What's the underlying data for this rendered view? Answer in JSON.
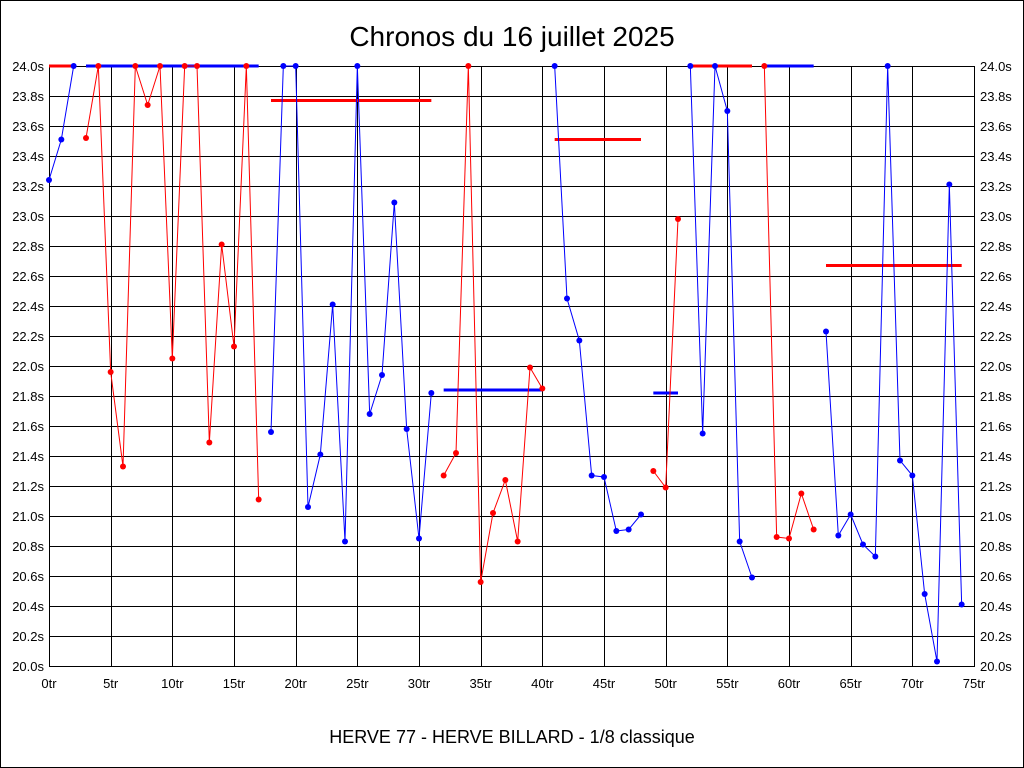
{
  "chart_data": {
    "type": "line",
    "title": "Chronos du 16 juillet 2025",
    "footer": "HERVE 77 - HERVE BILLARD - 1/8 classique",
    "xlim": [
      0,
      75
    ],
    "ylim": [
      20.0,
      24.0
    ],
    "grid": true,
    "colors": {
      "background": "#ffffff",
      "grid": "#000000",
      "blue": "#0000ff",
      "red": "#ff0000"
    },
    "x_ticks": [
      {
        "value": 0,
        "label": "0tr"
      },
      {
        "value": 5,
        "label": "5tr"
      },
      {
        "value": 10,
        "label": "10tr"
      },
      {
        "value": 15,
        "label": "15tr"
      },
      {
        "value": 20,
        "label": "20tr"
      },
      {
        "value": 25,
        "label": "25tr"
      },
      {
        "value": 30,
        "label": "30tr"
      },
      {
        "value": 35,
        "label": "35tr"
      },
      {
        "value": 40,
        "label": "40tr"
      },
      {
        "value": 45,
        "label": "45tr"
      },
      {
        "value": 50,
        "label": "50tr"
      },
      {
        "value": 55,
        "label": "55tr"
      },
      {
        "value": 60,
        "label": "60tr"
      },
      {
        "value": 65,
        "label": "65tr"
      },
      {
        "value": 70,
        "label": "70tr"
      },
      {
        "value": 75,
        "label": "75tr"
      }
    ],
    "y_ticks": [
      {
        "value": 20.0,
        "label": "20.0s"
      },
      {
        "value": 20.2,
        "label": "20.2s"
      },
      {
        "value": 20.4,
        "label": "20.4s"
      },
      {
        "value": 20.6,
        "label": "20.6s"
      },
      {
        "value": 20.8,
        "label": "20.8s"
      },
      {
        "value": 21.0,
        "label": "21.0s"
      },
      {
        "value": 21.2,
        "label": "21.2s"
      },
      {
        "value": 21.4,
        "label": "21.4s"
      },
      {
        "value": 21.6,
        "label": "21.6s"
      },
      {
        "value": 21.8,
        "label": "21.8s"
      },
      {
        "value": 22.0,
        "label": "22.0s"
      },
      {
        "value": 22.2,
        "label": "22.2s"
      },
      {
        "value": 22.4,
        "label": "22.4s"
      },
      {
        "value": 22.6,
        "label": "22.6s"
      },
      {
        "value": 22.8,
        "label": "22.8s"
      },
      {
        "value": 23.0,
        "label": "23.0s"
      },
      {
        "value": 23.2,
        "label": "23.2s"
      },
      {
        "value": 23.4,
        "label": "23.4s"
      },
      {
        "value": 23.6,
        "label": "23.6s"
      },
      {
        "value": 23.8,
        "label": "23.8s"
      },
      {
        "value": 24.0,
        "label": "24.0s"
      }
    ],
    "series": [
      {
        "color": "#0000ff",
        "x": [
          0,
          1,
          2
        ],
        "values": [
          23.24,
          23.51,
          24.0
        ]
      },
      {
        "color": "#ff0000",
        "x": [
          3,
          4,
          5,
          6,
          7,
          8,
          9,
          10,
          11,
          12,
          13,
          14,
          15,
          16,
          17
        ],
        "values": [
          23.52,
          24.0,
          21.96,
          21.33,
          24.0,
          23.74,
          24.0,
          22.05,
          24.0,
          24.0,
          21.49,
          22.81,
          22.13,
          24.0,
          21.11
        ]
      },
      {
        "color": "#0000ff",
        "x": [
          18,
          19,
          20,
          21,
          22,
          23,
          24,
          25,
          26,
          27,
          28,
          29,
          30,
          31
        ],
        "values": [
          21.56,
          24.0,
          24.0,
          21.06,
          21.41,
          22.41,
          20.83,
          24.0,
          21.68,
          21.94,
          23.09,
          21.58,
          20.85,
          21.82
        ]
      },
      {
        "color": "#ff0000",
        "x": [
          32,
          33,
          34,
          35,
          36,
          37,
          38,
          39,
          40
        ],
        "values": [
          21.27,
          21.42,
          24.0,
          20.56,
          21.02,
          21.24,
          20.83,
          21.99,
          21.85
        ]
      },
      {
        "color": "#0000ff",
        "x": [
          41,
          42,
          43,
          44,
          45,
          46,
          47,
          48
        ],
        "values": [
          24.0,
          22.45,
          22.17,
          21.27,
          21.26,
          20.9,
          20.91,
          21.01
        ]
      },
      {
        "color": "#ff0000",
        "x": [
          49,
          50,
          51
        ],
        "values": [
          21.3,
          21.19,
          22.98
        ]
      },
      {
        "color": "#0000ff",
        "x": [
          52,
          53,
          54,
          55,
          56,
          57
        ],
        "values": [
          24.0,
          21.55,
          24.0,
          23.7,
          20.83,
          20.59
        ]
      },
      {
        "color": "#ff0000",
        "x": [
          58,
          59,
          60,
          61,
          62
        ],
        "values": [
          24.0,
          20.86,
          20.85,
          21.15,
          20.91
        ]
      },
      {
        "color": "#0000ff",
        "x": [
          63,
          64,
          65,
          66,
          67,
          68,
          69,
          70,
          71,
          72,
          73,
          74
        ],
        "values": [
          22.23,
          20.87,
          21.01,
          20.81,
          20.73,
          24.0,
          21.37,
          21.27,
          20.48,
          20.03,
          23.21,
          20.41
        ]
      }
    ],
    "averages": [
      {
        "color": "#ff0000",
        "x": [
          0,
          2
        ],
        "value": 24.0
      },
      {
        "color": "#0000ff",
        "x": [
          3,
          17
        ],
        "value": 24.0
      },
      {
        "color": "#ff0000",
        "x": [
          18,
          31
        ],
        "value": 23.77
      },
      {
        "color": "#0000ff",
        "x": [
          32,
          40
        ],
        "value": 21.84
      },
      {
        "color": "#ff0000",
        "x": [
          41,
          48
        ],
        "value": 23.51
      },
      {
        "color": "#0000ff",
        "x": [
          49,
          51
        ],
        "value": 21.82
      },
      {
        "color": "#ff0000",
        "x": [
          52,
          57
        ],
        "value": 24.0
      },
      {
        "color": "#0000ff",
        "x": [
          58,
          62
        ],
        "value": 24.0
      },
      {
        "color": "#ff0000",
        "x": [
          63,
          74
        ],
        "value": 22.67
      }
    ]
  }
}
